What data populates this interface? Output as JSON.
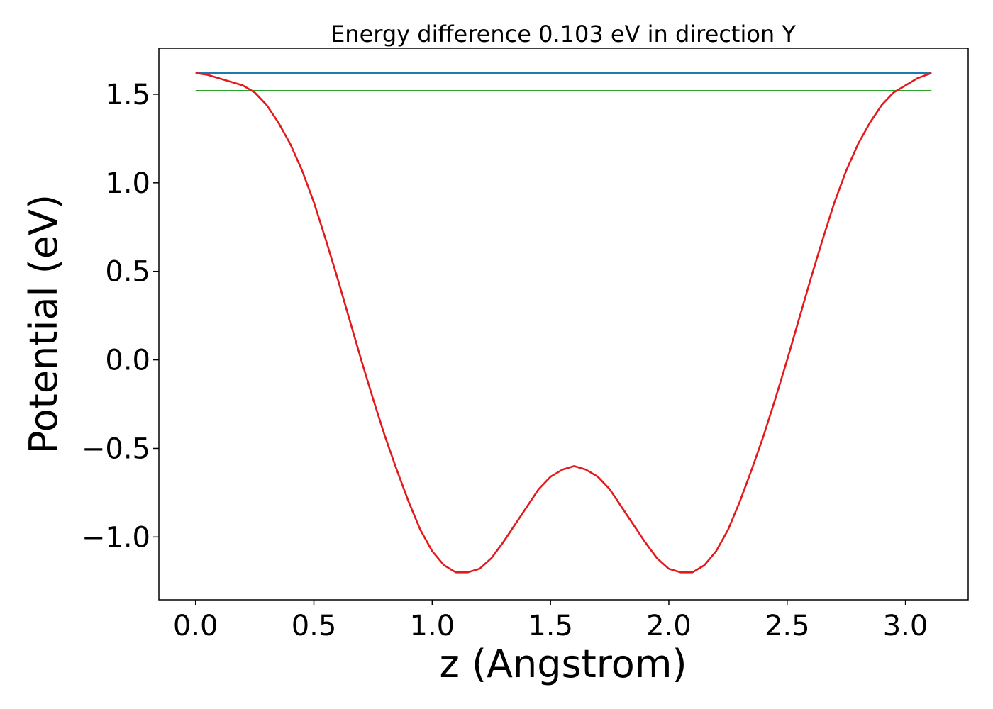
{
  "chart_data": {
    "type": "line",
    "title": "Energy difference 0.103 eV in direction Y",
    "xlabel": "z (Angstrom)",
    "ylabel": "Potential (eV)",
    "xlim": [
      -0.155,
      3.265
    ],
    "ylim": [
      -1.355,
      1.76
    ],
    "xticks": [
      0.0,
      0.5,
      1.0,
      1.5,
      2.0,
      2.5,
      3.0
    ],
    "xtick_labels": [
      "0.0",
      "0.5",
      "1.0",
      "1.5",
      "2.0",
      "2.5",
      "3.0"
    ],
    "yticks": [
      -1.0,
      -0.5,
      0.0,
      0.5,
      1.0,
      1.5
    ],
    "ytick_labels": [
      "−1.0",
      "−0.5",
      "0.0",
      "0.5",
      "1.0",
      "1.5"
    ],
    "grid": false,
    "legend": "none",
    "series": [
      {
        "color": "#1f77b4",
        "x": [
          0.0,
          3.11
        ],
        "y": [
          1.62,
          1.62
        ]
      },
      {
        "color": "#2ca02c",
        "x": [
          0.0,
          3.11
        ],
        "y": [
          1.52,
          1.52
        ]
      },
      {
        "color": "#e31a1c",
        "x": [
          0.0,
          0.05,
          0.1,
          0.15,
          0.2,
          0.25,
          0.3,
          0.35,
          0.4,
          0.45,
          0.5,
          0.55,
          0.6,
          0.65,
          0.7,
          0.75,
          0.8,
          0.85,
          0.9,
          0.95,
          1.0,
          1.05,
          1.1,
          1.15,
          1.2,
          1.25,
          1.3,
          1.35,
          1.4,
          1.45,
          1.5,
          1.55,
          1.6,
          1.65,
          1.7,
          1.75,
          1.8,
          1.85,
          1.9,
          1.95,
          2.0,
          2.05,
          2.1,
          2.15,
          2.2,
          2.25,
          2.3,
          2.35,
          2.4,
          2.45,
          2.5,
          2.55,
          2.6,
          2.65,
          2.7,
          2.75,
          2.8,
          2.85,
          2.9,
          2.95,
          3.0,
          3.05,
          3.11
        ],
        "y": [
          1.62,
          1.61,
          1.59,
          1.57,
          1.55,
          1.51,
          1.44,
          1.34,
          1.22,
          1.07,
          0.89,
          0.68,
          0.46,
          0.23,
          0.0,
          -0.22,
          -0.43,
          -0.62,
          -0.8,
          -0.96,
          -1.08,
          -1.16,
          -1.2,
          -1.2,
          -1.18,
          -1.12,
          -1.03,
          -0.93,
          -0.83,
          -0.73,
          -0.66,
          -0.62,
          -0.6,
          -0.62,
          -0.66,
          -0.73,
          -0.83,
          -0.93,
          -1.03,
          -1.12,
          -1.18,
          -1.2,
          -1.2,
          -1.16,
          -1.08,
          -0.96,
          -0.8,
          -0.62,
          -0.43,
          -0.22,
          0.0,
          0.23,
          0.46,
          0.68,
          0.89,
          1.07,
          1.22,
          1.34,
          1.44,
          1.51,
          1.55,
          1.59,
          1.62
        ]
      }
    ]
  }
}
